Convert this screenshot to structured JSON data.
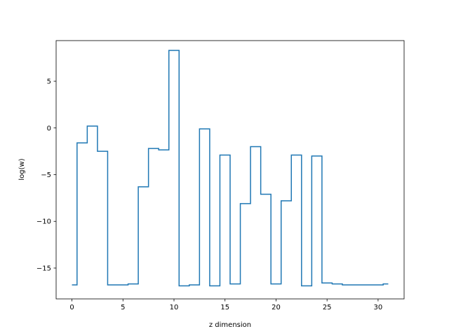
{
  "chart_data": {
    "type": "line",
    "step": "mid",
    "title": "",
    "xlabel": "z dimension",
    "ylabel": "log(w)",
    "xlim": [
      -1.55,
      32.55
    ],
    "ylim": [
      -18.3,
      9.35
    ],
    "xticks": [
      0,
      5,
      10,
      15,
      20,
      25,
      30
    ],
    "xtick_labels": [
      "0",
      "5",
      "10",
      "15",
      "20",
      "25",
      "30"
    ],
    "yticks": [
      -15,
      -10,
      -5,
      0,
      5
    ],
    "ytick_labels": [
      "−15",
      "−10",
      "−5",
      "0",
      "5"
    ],
    "grid": false,
    "legend": "none",
    "series": [
      {
        "color": "#1f77b4",
        "x": [
          0,
          1,
          2,
          3,
          4,
          5,
          6,
          7,
          8,
          9,
          10,
          11,
          12,
          13,
          14,
          15,
          16,
          17,
          18,
          19,
          20,
          21,
          22,
          23,
          24,
          25,
          26,
          27,
          28,
          29,
          30,
          31
        ],
        "y": [
          -16.8,
          -1.6,
          0.2,
          -2.5,
          -16.8,
          -16.8,
          -16.7,
          -6.3,
          -2.2,
          -2.35,
          8.3,
          -16.9,
          -16.8,
          -0.1,
          -16.9,
          -2.9,
          -16.7,
          -8.1,
          -2.0,
          -7.1,
          -16.7,
          -7.8,
          -2.9,
          -16.9,
          -3.0,
          -16.6,
          -16.7,
          -16.8,
          -16.8,
          -16.8,
          -16.8,
          -16.7
        ]
      }
    ]
  }
}
